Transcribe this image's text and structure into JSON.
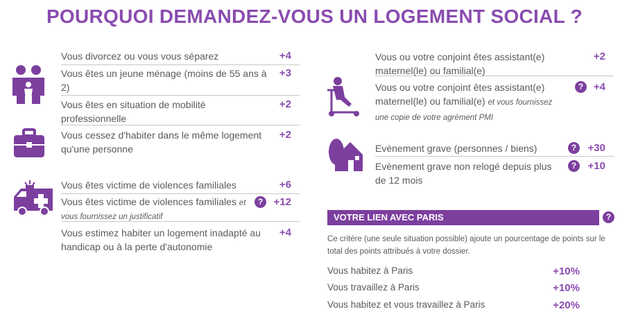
{
  "title": "POURQUOI DEMANDEZ-VOUS UN LOGEMENT SOCIAL ?",
  "left": [
    {
      "text": "Vous divorcez ou vous vous séparez",
      "points": "+4"
    },
    {
      "text": "Vous êtes un jeune ménage (moins de 55 ans à 2)",
      "points": "+3"
    },
    {
      "text": "Vous êtes en situation de mobilité professionnelle",
      "points": "+2"
    },
    {
      "text": "Vous cessez d'habiter dans le même logement qu'une personne",
      "points": "+2"
    },
    {
      "text": "Vous êtes victime de violences familiales",
      "points": "+6"
    },
    {
      "text": "Vous êtes victime de violences familiales",
      "italic": "et vous fournissez un justificatif",
      "points": "+12",
      "help": "?"
    },
    {
      "text": "Vous estimez habiter un logement inadapté au handicap ou à la perte d'autonomie",
      "points": "+4"
    }
  ],
  "right": [
    {
      "text": "Vous ou votre conjoint êtes assistant(e) maternel(le) ou familial(e)",
      "points": "+2"
    },
    {
      "text": "Vous ou votre conjoint êtes assistant(e) maternel(le) ou familial(e)",
      "italic": "et vous fournissez une copie de votre agrément PMI",
      "points": "+4",
      "help": "?"
    },
    {
      "text": "Evènement grave (personnes / biens)",
      "points": "+30",
      "help": "?"
    },
    {
      "text": "Evènement grave non relogé depuis plus de 12 mois",
      "points": "+10",
      "help": "?"
    }
  ],
  "lien": {
    "title": "VOTRE LIEN AVEC PARIS",
    "help": "?",
    "note": "Ce critère (une seule situation possible) ajoute un pourcentage de points sur le total des points attribués à votre dossier.",
    "rows": [
      {
        "label": "Vous habitez à Paris",
        "value": "+10%"
      },
      {
        "label": "Vous travaillez à Paris",
        "value": "+10%"
      },
      {
        "label": "Vous habitez et vous travaillez à Paris",
        "value": "+20%"
      }
    ]
  }
}
